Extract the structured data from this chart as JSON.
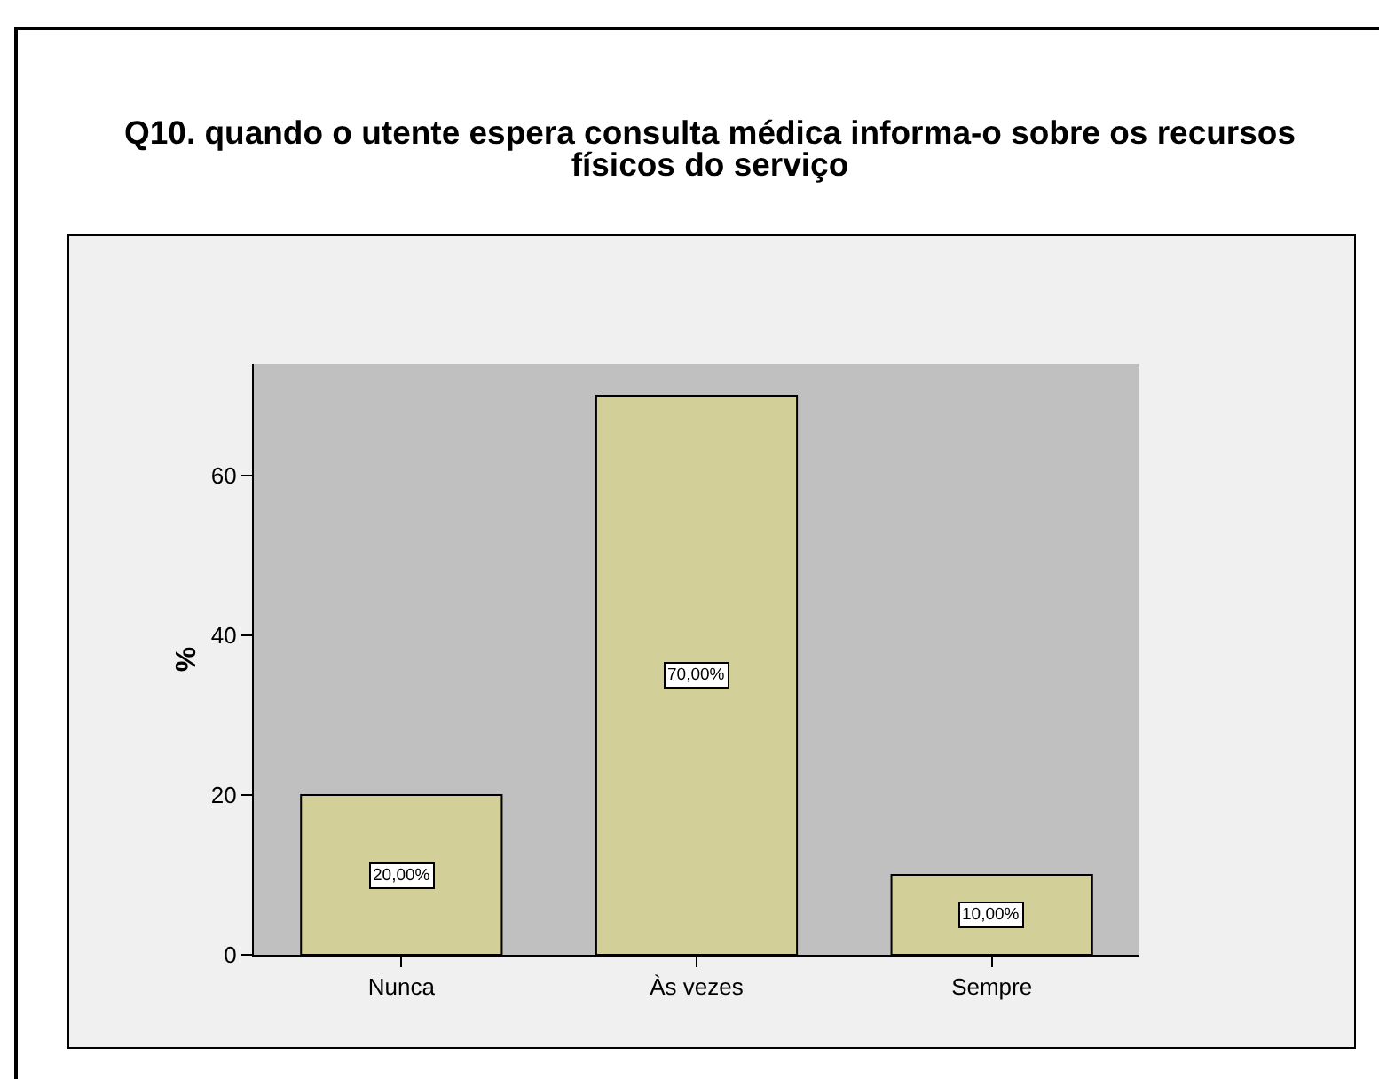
{
  "chart_data": {
    "type": "bar",
    "title": "Q10. quando o utente espera consulta médica informa-o sobre os recursos físicos do serviço",
    "ylabel": "%",
    "categories": [
      "Nunca",
      "Às vezes",
      "Sempre"
    ],
    "values": [
      20,
      70,
      10
    ],
    "color": "#d3cf98",
    "value_labels": [
      "20,00%",
      "70,00%",
      "10,00%"
    ],
    "ylim": [
      0,
      74
    ],
    "yticks": [
      0,
      20,
      40,
      60
    ]
  }
}
